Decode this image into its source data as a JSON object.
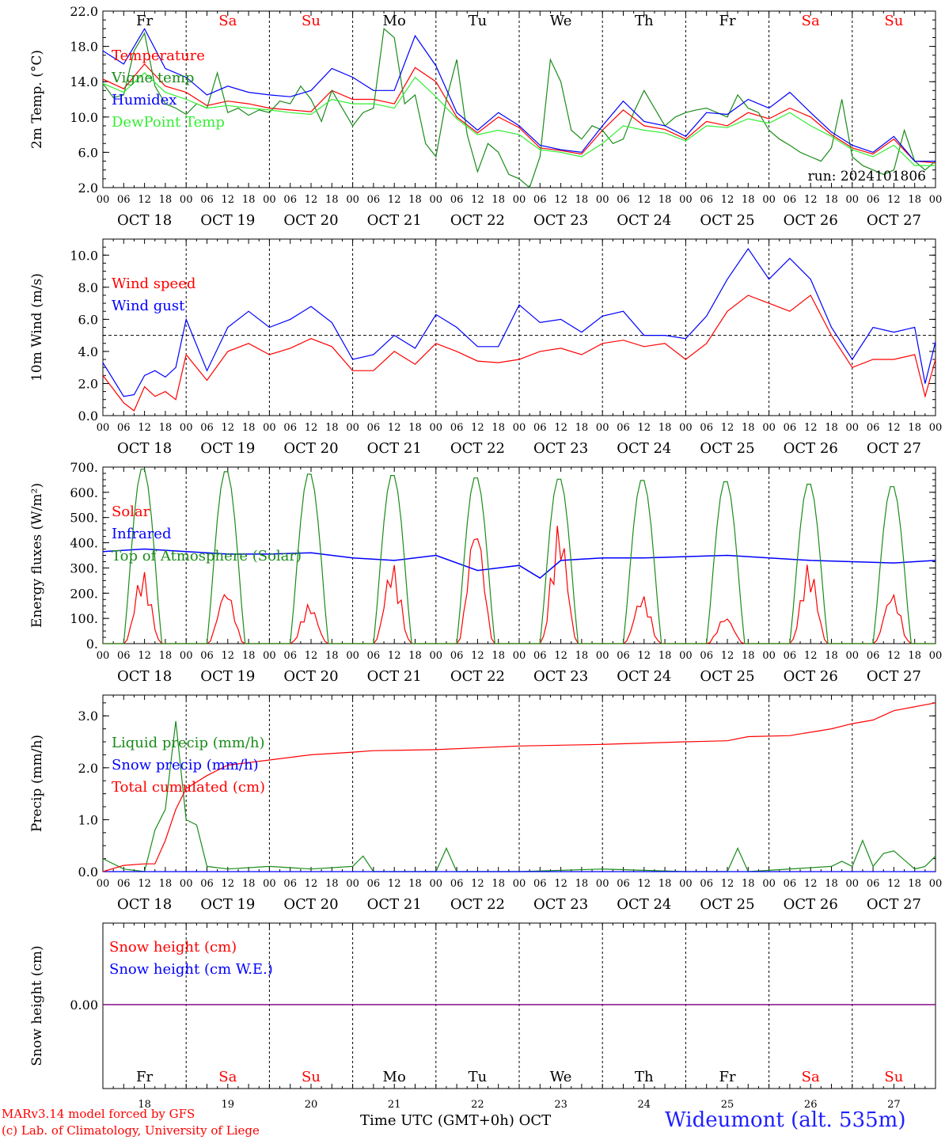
{
  "days": {
    "labels": [
      "Fr",
      "Sa",
      "Su",
      "Mo",
      "Tu",
      "We",
      "Th",
      "Fr",
      "Sa",
      "Su"
    ],
    "weekend": [
      false,
      true,
      true,
      false,
      false,
      false,
      false,
      false,
      true,
      true
    ],
    "dates": [
      "OCT 18",
      "OCT 19",
      "OCT 20",
      "OCT 21",
      "OCT 22",
      "OCT 23",
      "OCT 24",
      "OCT 25",
      "OCT 26",
      "OCT 27"
    ],
    "bottom_numbers": [
      "18",
      "19",
      "20",
      "21",
      "22",
      "23",
      "24",
      "25",
      "26",
      "27"
    ],
    "hour_ticks": [
      "00",
      "06",
      "12",
      "18"
    ],
    "end_tick": "00"
  },
  "colors": {
    "red": "#ff0000",
    "green": "#1a8c1a",
    "blue": "#0000ff",
    "light_green": "#33ee33",
    "purple": "#7f007f",
    "weekend": "#ff0000",
    "station": "#1f1fff"
  },
  "bottom": {
    "credit_line1": "MARv3.14 model forced by GFS",
    "credit_line2": "(c) Lab. of Climatology, University of Liege",
    "xlabel": "Time UTC (GMT+0h)",
    "month": "OCT",
    "station": "Wideumont (alt. 535m)"
  },
  "chart_data": [
    {
      "type": "line",
      "ylabel": "2m Temp. (°C)",
      "ylim": [
        2,
        22
      ],
      "yticks": [
        "2.0",
        "6.0",
        "10.0",
        "14.0",
        "18.0",
        "22.0"
      ],
      "annotation": "run: 2024101806",
      "x_units": "hours since 2024-10-18 00 UTC",
      "series": [
        {
          "name": "Temperature",
          "color": "red",
          "x": [
            0,
            6,
            12,
            18,
            24,
            30,
            36,
            42,
            48,
            54,
            60,
            66,
            72,
            78,
            84,
            90,
            96,
            102,
            108,
            114,
            120,
            126,
            132,
            138,
            144,
            150,
            156,
            162,
            168,
            174,
            180,
            186,
            192,
            198,
            204,
            210,
            216,
            222,
            228,
            234,
            240
          ],
          "values": [
            14.3,
            13.2,
            16.0,
            13.5,
            12.8,
            11.3,
            11.8,
            11.5,
            11.0,
            10.8,
            10.6,
            13.0,
            12.0,
            12.0,
            11.5,
            15.6,
            14.0,
            10.0,
            8.2,
            10.0,
            8.8,
            6.5,
            6.2,
            5.8,
            8.5,
            10.8,
            9.0,
            8.6,
            7.5,
            9.5,
            9.0,
            10.5,
            9.8,
            11.0,
            10.0,
            8.0,
            6.5,
            5.8,
            7.5,
            5.0,
            4.8
          ]
        },
        {
          "name": "Vigne temp",
          "color": "green",
          "x": [
            0,
            3,
            6,
            9,
            12,
            15,
            18,
            21,
            24,
            27,
            30,
            33,
            36,
            39,
            42,
            45,
            48,
            51,
            54,
            57,
            60,
            63,
            66,
            69,
            72,
            75,
            78,
            81,
            84,
            87,
            90,
            93,
            96,
            99,
            102,
            105,
            108,
            111,
            114,
            117,
            120,
            123,
            126,
            129,
            132,
            135,
            138,
            141,
            144,
            147,
            150,
            153,
            156,
            159,
            162,
            165,
            168,
            171,
            174,
            177,
            180,
            183,
            186,
            189,
            192,
            195,
            198,
            201,
            204,
            207,
            210,
            213,
            216,
            219,
            222,
            225,
            228,
            231,
            234,
            237,
            240
          ],
          "values": [
            13.8,
            12.2,
            12.5,
            17.5,
            19.5,
            13.5,
            11.5,
            11.0,
            10.3,
            11.5,
            11.0,
            15.0,
            10.5,
            11.0,
            10.2,
            10.8,
            10.5,
            11.8,
            11.5,
            13.5,
            12.0,
            9.5,
            13.0,
            11.0,
            9.0,
            10.5,
            11.0,
            20.0,
            19.0,
            11.5,
            12.5,
            7.0,
            5.5,
            12.0,
            16.5,
            8.0,
            3.8,
            7.0,
            6.0,
            3.5,
            3.0,
            2.0,
            5.5,
            16.5,
            14.0,
            8.5,
            7.5,
            9.0,
            8.5,
            7.0,
            7.5,
            10.5,
            13.0,
            11.0,
            9.0,
            10.0,
            10.5,
            10.8,
            11.0,
            10.5,
            10.0,
            12.5,
            11.0,
            10.5,
            8.5,
            7.5,
            6.8,
            6.0,
            5.5,
            5.0,
            6.5,
            12.0,
            5.5,
            4.5,
            4.0,
            3.5,
            4.0,
            8.5,
            5.0,
            4.0,
            5.0
          ]
        },
        {
          "name": "Humidex",
          "color": "blue",
          "x": [
            0,
            6,
            12,
            18,
            24,
            30,
            36,
            42,
            48,
            54,
            60,
            66,
            72,
            78,
            84,
            90,
            96,
            102,
            108,
            114,
            120,
            126,
            132,
            138,
            144,
            150,
            156,
            162,
            168,
            174,
            180,
            186,
            192,
            198,
            204,
            210,
            216,
            222,
            228,
            234,
            240
          ],
          "values": [
            17.5,
            16.0,
            20.0,
            15.5,
            14.5,
            12.5,
            13.5,
            12.8,
            12.5,
            12.3,
            13.0,
            15.5,
            14.5,
            13.0,
            13.0,
            19.2,
            15.8,
            10.5,
            8.5,
            10.5,
            9.0,
            6.8,
            6.3,
            6.0,
            9.0,
            11.8,
            9.5,
            9.0,
            7.8,
            10.5,
            10.3,
            12.0,
            11.0,
            12.8,
            10.5,
            8.3,
            6.8,
            6.0,
            7.8,
            5.0,
            5.0
          ]
        },
        {
          "name": "DewPoint Temp",
          "color": "light_green",
          "x": [
            0,
            6,
            12,
            18,
            24,
            30,
            36,
            42,
            48,
            54,
            60,
            66,
            72,
            78,
            84,
            90,
            96,
            102,
            108,
            114,
            120,
            126,
            132,
            138,
            144,
            150,
            156,
            162,
            168,
            174,
            180,
            186,
            192,
            198,
            204,
            210,
            216,
            222,
            228,
            234,
            240
          ],
          "values": [
            13.8,
            12.8,
            15.0,
            12.8,
            12.0,
            11.0,
            11.3,
            11.0,
            10.8,
            10.5,
            10.3,
            12.0,
            11.5,
            11.5,
            11.0,
            14.5,
            12.3,
            9.8,
            8.0,
            8.5,
            8.0,
            6.3,
            6.0,
            5.5,
            7.0,
            9.0,
            8.5,
            8.2,
            7.3,
            9.0,
            8.8,
            9.8,
            9.3,
            10.5,
            9.0,
            7.8,
            6.3,
            5.5,
            6.8,
            4.5,
            4.5
          ]
        }
      ]
    },
    {
      "type": "line",
      "ylabel": "10m Wind (m/s)",
      "ylim": [
        0,
        11
      ],
      "yticks": [
        "0.0",
        "2.0",
        "4.0",
        "6.0",
        "8.0",
        "10.0"
      ],
      "reference_line": 5,
      "x_units": "hours since 2024-10-18 00 UTC",
      "series": [
        {
          "name": "Wind speed",
          "color": "red",
          "x": [
            0,
            6,
            9,
            12,
            15,
            18,
            21,
            24,
            30,
            36,
            42,
            48,
            54,
            60,
            66,
            72,
            78,
            84,
            90,
            96,
            102,
            108,
            114,
            120,
            126,
            132,
            138,
            144,
            150,
            156,
            162,
            168,
            174,
            180,
            186,
            192,
            198,
            204,
            210,
            216,
            222,
            228,
            234,
            237,
            240
          ],
          "values": [
            2.5,
            0.8,
            0.3,
            1.8,
            1.2,
            1.5,
            1.0,
            3.8,
            2.2,
            4.0,
            4.5,
            3.8,
            4.2,
            4.8,
            4.3,
            2.8,
            2.8,
            4.0,
            3.2,
            4.5,
            4.0,
            3.4,
            3.3,
            3.5,
            4.0,
            4.2,
            3.8,
            4.5,
            4.7,
            4.3,
            4.5,
            3.5,
            4.5,
            6.5,
            7.5,
            7.0,
            6.5,
            7.5,
            5.0,
            3.0,
            3.5,
            3.5,
            3.8,
            1.2,
            3.5
          ]
        },
        {
          "name": "Wind gust",
          "color": "blue",
          "x": [
            0,
            6,
            9,
            12,
            15,
            18,
            21,
            24,
            30,
            36,
            42,
            48,
            54,
            60,
            66,
            72,
            78,
            84,
            90,
            96,
            102,
            108,
            114,
            120,
            126,
            132,
            138,
            144,
            150,
            156,
            162,
            168,
            174,
            180,
            186,
            192,
            198,
            204,
            210,
            216,
            222,
            228,
            234,
            237,
            240
          ],
          "values": [
            3.3,
            1.2,
            1.3,
            2.5,
            2.8,
            2.4,
            3.0,
            6.0,
            2.8,
            5.5,
            6.5,
            5.5,
            6.0,
            6.8,
            5.8,
            3.5,
            3.8,
            5.0,
            4.2,
            6.3,
            5.5,
            4.3,
            4.3,
            6.9,
            5.8,
            6.0,
            5.2,
            6.2,
            6.5,
            5.0,
            5.0,
            4.8,
            6.2,
            8.5,
            10.4,
            8.5,
            9.8,
            8.5,
            5.5,
            3.5,
            5.5,
            5.2,
            5.5,
            2.0,
            4.6
          ]
        }
      ]
    },
    {
      "type": "line",
      "ylabel": "Energy fluxes (W/m²)",
      "ylim": [
        0,
        700
      ],
      "yticks": [
        "0.",
        "100.",
        "200.",
        "300.",
        "400.",
        "500.",
        "600.",
        "700."
      ],
      "x_units": "hours since 2024-10-18 00 UTC",
      "series": [
        {
          "name": "Solar",
          "color": "red",
          "day_peaks": [
            290,
            220,
            160,
            320,
            490,
            480,
            195,
            110,
            320,
            205
          ]
        },
        {
          "name": "Infrared",
          "color": "blue",
          "x": [
            0,
            12,
            24,
            36,
            48,
            60,
            72,
            84,
            96,
            108,
            120,
            126,
            132,
            144,
            156,
            168,
            180,
            192,
            204,
            216,
            228,
            240
          ],
          "values": [
            365,
            375,
            365,
            355,
            355,
            360,
            340,
            330,
            350,
            290,
            310,
            260,
            330,
            340,
            340,
            345,
            350,
            340,
            330,
            325,
            320,
            330
          ]
        },
        {
          "name": "Top of Atmosphere (Solar)",
          "color": "green",
          "day_peaks": [
            700,
            690,
            680,
            675,
            665,
            660,
            655,
            650,
            640,
            630
          ]
        }
      ]
    },
    {
      "type": "line",
      "ylabel": "Precip (mm/h)",
      "ylim": [
        0,
        3.4
      ],
      "yticks": [
        "0.0",
        "1.0",
        "2.0",
        "3.0"
      ],
      "x_units": "hours since 2024-10-18 00 UTC",
      "series": [
        {
          "name": "Liquid precip (mm/h)",
          "color": "green",
          "x": [
            0,
            6,
            12,
            15,
            18,
            21,
            24,
            27,
            30,
            36,
            48,
            60,
            72,
            75,
            78,
            96,
            99,
            102,
            120,
            144,
            168,
            180,
            183,
            186,
            210,
            213,
            216,
            219,
            222,
            225,
            228,
            234,
            237,
            240
          ],
          "values": [
            0.25,
            0.05,
            0.0,
            0.8,
            1.2,
            2.9,
            1.0,
            0.9,
            0.1,
            0.05,
            0.1,
            0.05,
            0.1,
            0.3,
            0.0,
            0.0,
            0.45,
            0.0,
            0.0,
            0.05,
            0.0,
            0.0,
            0.45,
            0.0,
            0.1,
            0.2,
            0.1,
            0.6,
            0.1,
            0.35,
            0.4,
            0.05,
            0.1,
            0.3
          ]
        },
        {
          "name": "Snow precip (mm/h)",
          "color": "blue",
          "x": [
            0,
            240
          ],
          "values": [
            0,
            0
          ]
        },
        {
          "name": "Total cumulated (cm)",
          "color": "red",
          "x": [
            0,
            6,
            12,
            15,
            18,
            21,
            24,
            30,
            36,
            42,
            48,
            60,
            72,
            78,
            96,
            120,
            144,
            168,
            180,
            186,
            198,
            210,
            216,
            222,
            228,
            240
          ],
          "values": [
            0.0,
            0.12,
            0.15,
            0.15,
            0.6,
            1.2,
            1.6,
            1.85,
            2.05,
            2.1,
            2.15,
            2.25,
            2.3,
            2.33,
            2.35,
            2.42,
            2.45,
            2.5,
            2.52,
            2.6,
            2.62,
            2.75,
            2.85,
            2.92,
            3.1,
            3.25
          ]
        }
      ]
    },
    {
      "type": "line",
      "ylabel": "Snow height (cm)",
      "yticks": [
        "0.00"
      ],
      "x_units": "hours since 2024-10-18 00 UTC",
      "series": [
        {
          "name": "Snow height (cm)",
          "color": "red",
          "x": [
            0,
            240
          ],
          "values": [
            0,
            0
          ]
        },
        {
          "name": "Snow height (cm W.E.)",
          "color": "blue",
          "x": [
            0,
            240
          ],
          "values": [
            0,
            0
          ]
        }
      ]
    }
  ]
}
